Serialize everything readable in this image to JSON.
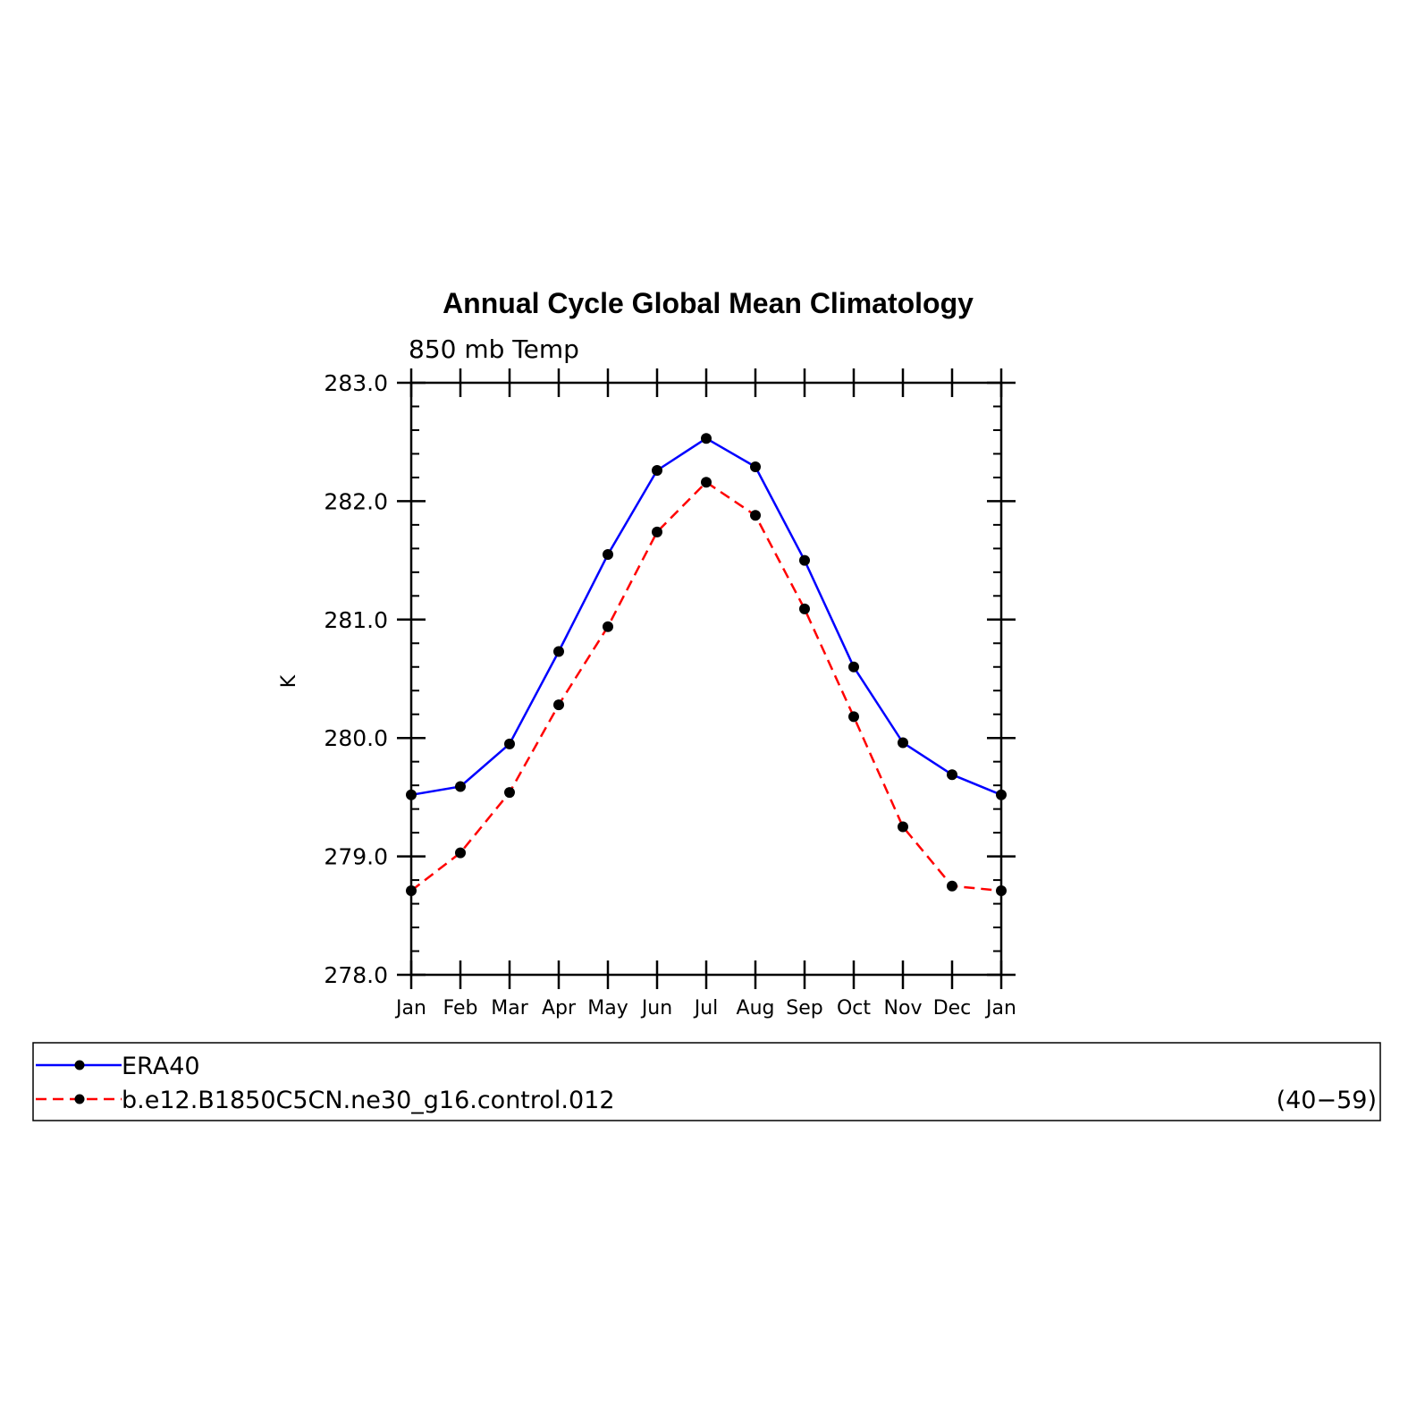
{
  "chart_data": {
    "type": "line",
    "title": "Annual Cycle Global Mean Climatology",
    "subtitle": "850 mb Temp",
    "xlabel": "",
    "ylabel": "K",
    "categories": [
      "Jan",
      "Feb",
      "Mar",
      "Apr",
      "May",
      "Jun",
      "Jul",
      "Aug",
      "Sep",
      "Oct",
      "Nov",
      "Dec",
      "Jan"
    ],
    "ylim": [
      278.0,
      283.0
    ],
    "yticks": [
      "278.0",
      "279.0",
      "280.0",
      "281.0",
      "282.0",
      "283.0"
    ],
    "y_minor_step": 0.2,
    "grid": false,
    "legend_position": "bottom",
    "series": [
      {
        "name": "ERA40",
        "color": "#0000ff",
        "line_style": "solid",
        "marker": "filled-circle",
        "values": [
          279.52,
          279.59,
          279.95,
          280.73,
          281.55,
          282.26,
          282.53,
          282.29,
          281.5,
          280.6,
          279.96,
          279.69,
          279.52
        ]
      },
      {
        "name": "b.e12.B1850C5CN.ne30_g16.control.012",
        "color": "#ff0000",
        "line_style": "dashed",
        "marker": "filled-circle",
        "years": "(40−59)",
        "values": [
          278.71,
          279.03,
          279.54,
          280.28,
          280.94,
          281.74,
          282.16,
          281.88,
          281.09,
          280.18,
          279.25,
          278.75,
          278.71
        ]
      }
    ]
  }
}
